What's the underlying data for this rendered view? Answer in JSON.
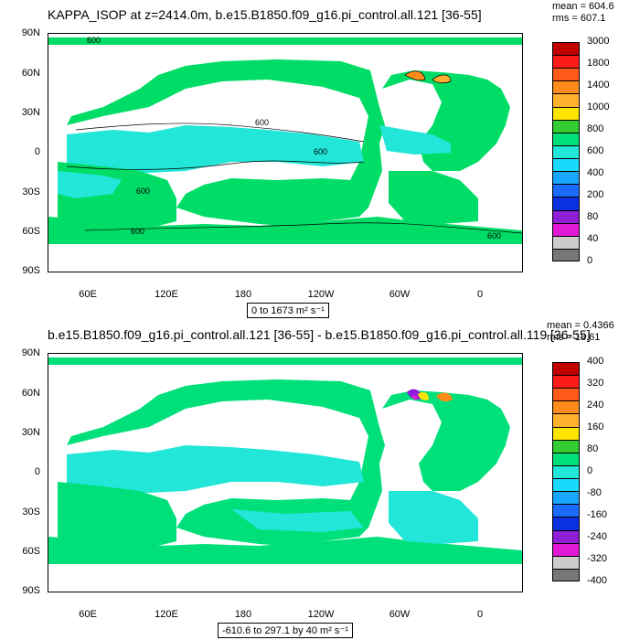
{
  "panels": [
    {
      "title": "KAPPA_ISOP at z=2414.0m, b.e15.B1850.f09_g16.pi_control.all.121 [36-55]",
      "stats": {
        "mean": "mean = 604.6",
        "rms": "rms = 607.1"
      },
      "range_label": "0 to 1673 m² s⁻¹",
      "contour_labels": [
        "600",
        "600",
        "600",
        "600",
        "600",
        "600"
      ],
      "colorbar": {
        "labels": [
          "3000",
          "1800",
          "1400",
          "1000",
          "800",
          "600",
          "400",
          "200",
          "80",
          "40",
          "0"
        ],
        "colors": [
          "#c00000",
          "#ff1a1a",
          "#ff5a1a",
          "#ff8c1a",
          "#ffb02e",
          "#ffe600",
          "#33cc33",
          "#00e07a",
          "#22e6d8",
          "#1ad9ff",
          "#1aa6ff",
          "#1a6bff",
          "#0a30e0",
          "#8f1fd6",
          "#e01ad6",
          "#cccccc",
          "#777777"
        ]
      },
      "land_fill": "#00dd66",
      "ocean_fill": "#22e6d8"
    },
    {
      "title": "b.e15.B1850.f09_g16.pi_control.all.121 [36-55] - b.e15.B1850.f09_g16.pi_control.all.119 [36-55]",
      "stats": {
        "mean": "mean = 0.4366",
        "rms": "rms = 18.61"
      },
      "range_label": "-610.6 to 297.1 by 40 m² s⁻¹",
      "colorbar": {
        "labels": [
          "400",
          "320",
          "240",
          "160",
          "80",
          "0",
          "-80",
          "-160",
          "-240",
          "-320",
          "-400"
        ],
        "colors": [
          "#c00000",
          "#ff1a1a",
          "#ff5a1a",
          "#ff8c1a",
          "#ffb02e",
          "#ffe600",
          "#33cc33",
          "#00e07a",
          "#22e6d8",
          "#1ad9ff",
          "#1aa6ff",
          "#1a6bff",
          "#0a30e0",
          "#8f1fd6",
          "#e01ad6",
          "#cccccc",
          "#777777"
        ]
      },
      "land_fill": "#00e07a",
      "ocean_fill": "#22e6d8"
    }
  ],
  "lat_labels": [
    "90N",
    "60N",
    "30N",
    "0",
    "30S",
    "60S",
    "90S"
  ],
  "lon_labels": [
    "60E",
    "120E",
    "180",
    "120W",
    "60W",
    "0"
  ]
}
